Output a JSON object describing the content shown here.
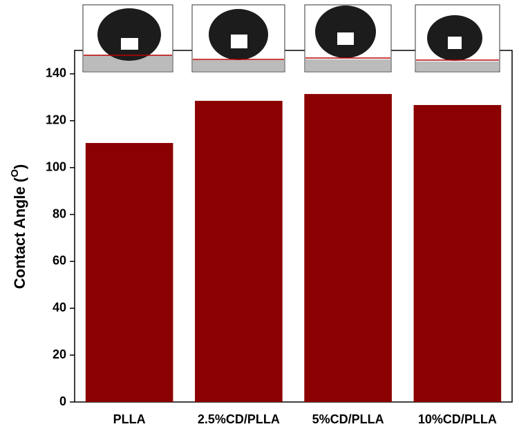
{
  "chart_data": {
    "type": "bar",
    "ylabel_parts": [
      "Contact Angle (",
      "O",
      ")"
    ],
    "categories": [
      "PLLA",
      "2.5%CD/PLLA",
      "5%CD/PLLA",
      "10%CD/PLLA"
    ],
    "values": [
      110.5,
      128.5,
      131.4,
      126.7
    ],
    "color": "#8b0000",
    "ylim": [
      0,
      150
    ],
    "yticks": [
      0,
      20,
      40,
      60,
      80,
      100,
      120,
      140
    ],
    "grid": false
  }
}
